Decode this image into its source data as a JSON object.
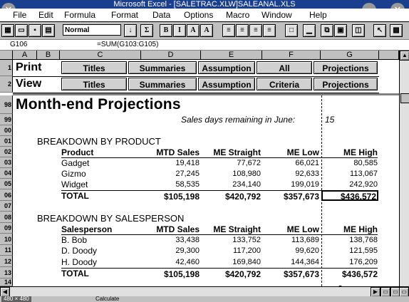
{
  "window": {
    "title": "Microsoft Excel - [SALETRAC.XLW]SALEANAL.XLS"
  },
  "menu": [
    "File",
    "Edit",
    "Formula",
    "Format",
    "Data",
    "Options",
    "Macro",
    "Window",
    "Help"
  ],
  "toolbar": {
    "style_value": "Normal"
  },
  "formula_bar": {
    "cell_ref": "G106",
    "formula": "=SUM(G103:G105)"
  },
  "columns": [
    "A",
    "B",
    "C",
    "D",
    "E",
    "F",
    "G"
  ],
  "nav": {
    "print_label": "Print",
    "view_label": "View",
    "row1": [
      "Titles",
      "Summaries",
      "Assumption",
      "All",
      "Projections"
    ],
    "row2": [
      "Titles",
      "Summaries",
      "Assumption",
      "Criteria",
      "Projections"
    ]
  },
  "row_numbers": [
    "1",
    "2",
    "98",
    "99",
    "00",
    "01",
    "02",
    "03",
    "04",
    "05",
    "06",
    "07",
    "08",
    "09",
    "10",
    "11",
    "12",
    "13",
    "14"
  ],
  "sheet": {
    "title": "Month-end Projections",
    "sales_days_label": "Sales days remaining in June:",
    "sales_days_value": "15",
    "product_section": {
      "heading": "BREAKDOWN BY PRODUCT",
      "col_label": "Product",
      "rows": [
        {
          "name": "Gadget",
          "mtd": "19,418",
          "straight": "77,672",
          "low": "66,021",
          "high": "80,585"
        },
        {
          "name": "Gizmo",
          "mtd": "27,245",
          "straight": "108,980",
          "low": "92,633",
          "high": "113,067"
        },
        {
          "name": "Widget",
          "mtd": "58,535",
          "straight": "234,140",
          "low": "199,019",
          "high": "242,920"
        }
      ],
      "total": {
        "name": "TOTAL",
        "mtd": "$105,198",
        "straight": "$420,792",
        "low": "$357,673",
        "high": "$436,572"
      }
    },
    "salesperson_section": {
      "heading": "BREAKDOWN BY SALESPERSON",
      "col_label": "Salesperson",
      "rows": [
        {
          "name": "B. Bob",
          "mtd": "33,438",
          "straight": "133,752",
          "low": "113,689",
          "high": "138,768"
        },
        {
          "name": "D. Doody",
          "mtd": "29,300",
          "straight": "117,200",
          "low": "99,620",
          "high": "121,595"
        },
        {
          "name": "H. Doody",
          "mtd": "42,460",
          "straight": "169,840",
          "low": "144,364",
          "high": "176,209"
        }
      ],
      "total": {
        "name": "TOTAL",
        "mtd": "$105,198",
        "straight": "$420,792",
        "low": "$357,673",
        "high": "$436,572"
      }
    },
    "headers": {
      "mtd": "MTD Sales",
      "straight": "ME Straight",
      "low": "ME Low",
      "high": "ME High"
    }
  },
  "status": {
    "left": "480 × 480",
    "mode": "Calculate"
  }
}
